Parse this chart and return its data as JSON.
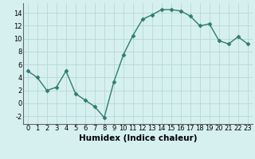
{
  "x": [
    0,
    1,
    2,
    3,
    4,
    5,
    6,
    7,
    8,
    9,
    10,
    11,
    12,
    13,
    14,
    15,
    16,
    17,
    18,
    19,
    20,
    21,
    22,
    23
  ],
  "y": [
    5,
    4,
    2,
    2.5,
    5,
    1.5,
    0.5,
    -0.5,
    -2.2,
    3.3,
    7.5,
    10.5,
    13,
    13.7,
    14.5,
    14.5,
    14.3,
    13.5,
    12,
    12.3,
    9.7,
    9.2,
    10.3,
    9.2
  ],
  "line_color": "#2e7d6e",
  "marker": "D",
  "marker_size": 2.5,
  "bg_color": "#d6f0f0",
  "grid_color": "#b8d8d8",
  "xlabel": "Humidex (Indice chaleur)",
  "xlim": [
    -0.5,
    23.5
  ],
  "ylim": [
    -3.2,
    15.5
  ],
  "yticks": [
    -2,
    0,
    2,
    4,
    6,
    8,
    10,
    12,
    14
  ],
  "xticks": [
    0,
    1,
    2,
    3,
    4,
    5,
    6,
    7,
    8,
    9,
    10,
    11,
    12,
    13,
    14,
    15,
    16,
    17,
    18,
    19,
    20,
    21,
    22,
    23
  ],
  "tick_label_size": 6,
  "xlabel_size": 7.5
}
